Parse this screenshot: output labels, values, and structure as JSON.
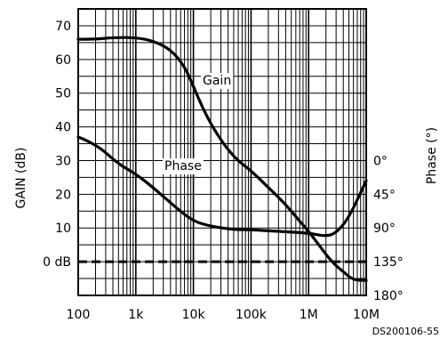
{
  "chart_data": {
    "type": "line",
    "x_scale": "log",
    "xlim": [
      100,
      10000000
    ],
    "ylim": [
      -10,
      75
    ],
    "grid": true,
    "x_tick_labels": [
      "100",
      "1k",
      "10k",
      "100k",
      "1M",
      "10M"
    ],
    "x_tick_values": [
      100,
      1000,
      10000,
      100000,
      1000000,
      10000000
    ],
    "y_left_label": "GAIN (dB)",
    "y_left_tick_labels": [
      "70",
      "60",
      "50",
      "40",
      "30",
      "20",
      "10",
      "0 dB"
    ],
    "y_left_tick_values": [
      70,
      60,
      50,
      40,
      30,
      20,
      10,
      0
    ],
    "y_right_label": "Phase (°)",
    "y_right_tick_labels": [
      "0°",
      "45°",
      "90°",
      "135°",
      "180°"
    ],
    "y_right_tick_values": [
      0,
      45,
      90,
      135,
      180
    ],
    "reference_line": {
      "y": 0,
      "style": "dashed"
    },
    "series": [
      {
        "name": "Gain",
        "points": [
          [
            100,
            66
          ],
          [
            200,
            66
          ],
          [
            400,
            66.5
          ],
          [
            1000,
            66.5
          ],
          [
            2000,
            65.5
          ],
          [
            4000,
            63
          ],
          [
            7000,
            58
          ],
          [
            10000,
            52
          ],
          [
            15000,
            45
          ],
          [
            25000,
            38
          ],
          [
            50000,
            31
          ],
          [
            100000,
            27
          ],
          [
            200000,
            22
          ],
          [
            400000,
            17
          ],
          [
            700000,
            12
          ],
          [
            1000000,
            9
          ],
          [
            1500000,
            5
          ],
          [
            2500000,
            0
          ],
          [
            4000000,
            -3
          ],
          [
            6000000,
            -5.5
          ],
          [
            10000000,
            -5.5
          ]
        ]
      },
      {
        "name": "Phase",
        "points": [
          [
            100,
            37
          ],
          [
            200,
            35
          ],
          [
            500,
            29
          ],
          [
            1000,
            26
          ],
          [
            2000,
            22
          ],
          [
            5000,
            16
          ],
          [
            10000,
            12
          ],
          [
            20000,
            10.5
          ],
          [
            50000,
            9.5
          ],
          [
            100000,
            9.5
          ],
          [
            300000,
            9
          ],
          [
            1000000,
            8.5
          ],
          [
            2000000,
            7.5
          ],
          [
            3000000,
            8.5
          ],
          [
            5000000,
            13
          ],
          [
            10000000,
            24
          ]
        ]
      }
    ],
    "annotations": [
      "Gain",
      "Phase"
    ],
    "footnote": "DS200106-55"
  }
}
